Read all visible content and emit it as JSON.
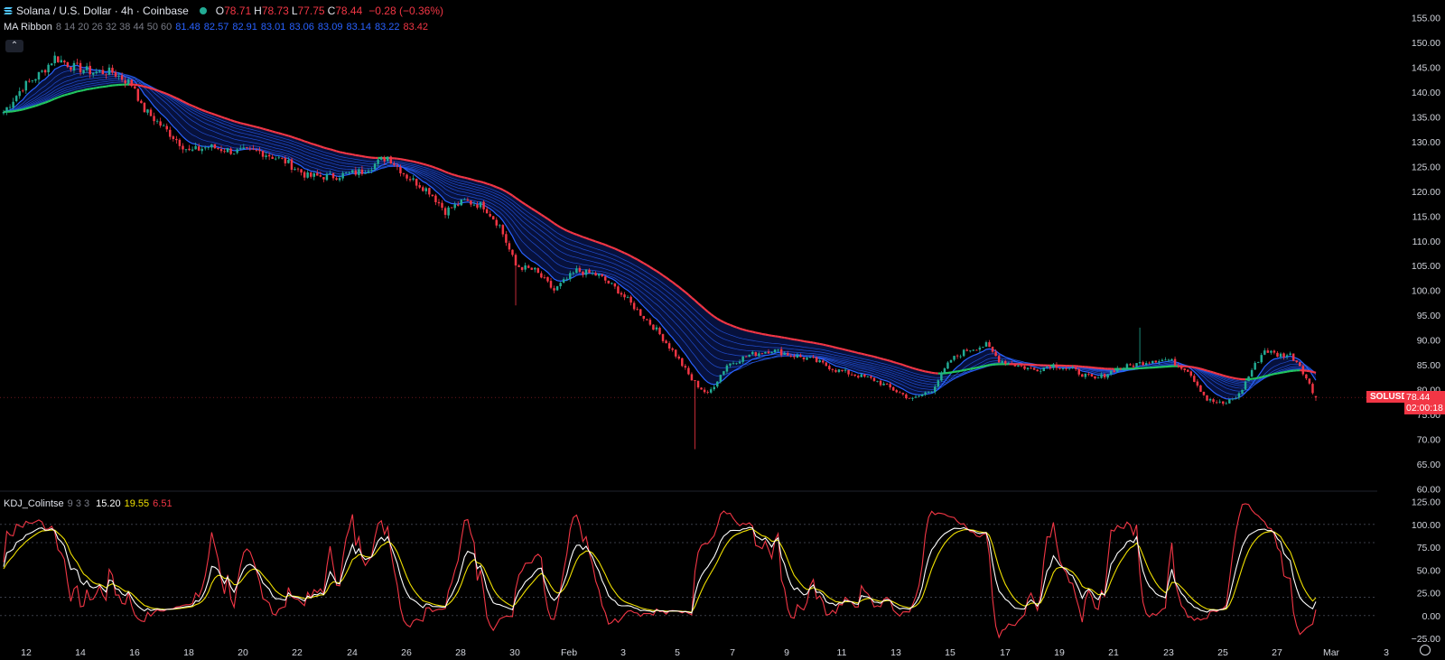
{
  "header": {
    "symbol_title": "Solana / U.S. Dollar · 4h · Coinbase",
    "ohlc": [
      {
        "k": "O",
        "v": "78.71"
      },
      {
        "k": "H",
        "v": "78.73"
      },
      {
        "k": "L",
        "v": "77.75"
      },
      {
        "k": "C",
        "v": "78.44"
      }
    ],
    "change": "−0.28 (−0.36%)",
    "status_color": "#22ab94"
  },
  "ma_ribbon": {
    "label": "MA Ribbon",
    "params": "8 14 20 26 32 38 44 50 60",
    "values": [
      {
        "v": "81.48",
        "color": "#2962ff"
      },
      {
        "v": "82.57",
        "color": "#2962ff"
      },
      {
        "v": "82.91",
        "color": "#2962ff"
      },
      {
        "v": "83.01",
        "color": "#2962ff"
      },
      {
        "v": "83.06",
        "color": "#2962ff"
      },
      {
        "v": "83.09",
        "color": "#2962ff"
      },
      {
        "v": "83.14",
        "color": "#2962ff"
      },
      {
        "v": "83.22",
        "color": "#2962ff"
      },
      {
        "v": "83.42",
        "color": "#f23645"
      }
    ]
  },
  "kdj": {
    "label": "KDJ_Colintse",
    "params": "9 3 3",
    "k": "15.20",
    "d": "19.55",
    "j": "6.51",
    "colors": {
      "k": "#ffffff",
      "d": "#f0e000",
      "j": "#f23645"
    }
  },
  "price_tag": {
    "symbol": "SOLUSD",
    "price": "78.44",
    "countdown": "02:00:18"
  },
  "chart_data": [
    {
      "type": "candlestick",
      "title": "Solana / U.S. Dollar · 4h · Coinbase",
      "ylim": [
        60,
        155
      ],
      "y_ticks": [
        "155.00",
        "150.00",
        "145.00",
        "140.00",
        "135.00",
        "130.00",
        "125.00",
        "120.00",
        "115.00",
        "110.00",
        "105.00",
        "100.00",
        "95.00",
        "90.00",
        "85.00",
        "80.00",
        "75.00",
        "70.00",
        "65.00",
        "60.00"
      ],
      "x_ticks": [
        "12",
        "14",
        "16",
        "18",
        "20",
        "22",
        "24",
        "26",
        "28",
        "30",
        "Feb",
        "3",
        "5",
        "7",
        "9",
        "11",
        "13",
        "15",
        "17",
        "19",
        "21",
        "23",
        "25",
        "27",
        "Mar",
        "3"
      ],
      "close_anchors": [
        [
          0,
          136
        ],
        [
          6,
          141
        ],
        [
          12,
          144
        ],
        [
          16,
          147
        ],
        [
          22,
          145
        ],
        [
          28,
          144
        ],
        [
          34,
          144
        ],
        [
          39,
          142
        ],
        [
          41,
          141
        ],
        [
          43,
          137
        ],
        [
          48,
          134
        ],
        [
          53,
          131
        ],
        [
          58,
          128
        ],
        [
          64,
          129
        ],
        [
          72,
          128
        ],
        [
          80,
          128
        ],
        [
          88,
          126
        ],
        [
          95,
          123
        ],
        [
          103,
          123
        ],
        [
          112,
          124
        ],
        [
          120,
          127
        ],
        [
          126,
          123
        ],
        [
          133,
          120
        ],
        [
          138,
          116
        ],
        [
          144,
          118
        ],
        [
          150,
          117
        ],
        [
          155,
          113
        ],
        [
          160,
          105
        ],
        [
          166,
          104
        ],
        [
          172,
          100
        ],
        [
          179,
          104
        ],
        [
          186,
          103
        ],
        [
          192,
          100
        ],
        [
          198,
          96
        ],
        [
          204,
          92
        ],
        [
          210,
          87
        ],
        [
          215,
          82
        ],
        [
          220,
          79
        ],
        [
          226,
          85
        ],
        [
          233,
          87
        ],
        [
          240,
          88
        ],
        [
          246,
          87
        ],
        [
          253,
          86
        ],
        [
          260,
          84
        ],
        [
          266,
          83
        ],
        [
          272,
          82
        ],
        [
          278,
          80
        ],
        [
          284,
          78
        ],
        [
          290,
          80
        ],
        [
          296,
          86
        ],
        [
          301,
          88
        ],
        [
          307,
          89
        ],
        [
          311,
          86
        ],
        [
          316,
          85
        ],
        [
          322,
          84
        ],
        [
          328,
          85
        ],
        [
          334,
          84
        ],
        [
          341,
          82
        ],
        [
          347,
          84
        ],
        [
          353,
          85
        ],
        [
          359,
          86
        ],
        [
          364,
          86
        ],
        [
          370,
          84
        ],
        [
          376,
          78
        ],
        [
          381,
          77
        ],
        [
          386,
          79
        ],
        [
          390,
          84
        ],
        [
          394,
          88
        ],
        [
          398,
          87
        ],
        [
          402,
          87
        ],
        [
          405,
          85
        ],
        [
          408,
          81
        ],
        [
          410,
          78
        ]
      ],
      "candles_count": 411,
      "last": {
        "open": 78.71,
        "high": 78.73,
        "low": 77.75,
        "close": 78.44
      }
    },
    {
      "type": "line",
      "title": "KDJ_Colintse 9 3 3",
      "ylim": [
        -25,
        125
      ],
      "y_ticks": [
        "125.00",
        "100.00",
        "75.00",
        "50.00",
        "25.00",
        "0.00",
        "−25.00"
      ],
      "grid_levels": [
        100,
        80,
        20,
        0
      ],
      "last": {
        "K": 15.2,
        "D": 19.55,
        "J": 6.51
      }
    }
  ]
}
